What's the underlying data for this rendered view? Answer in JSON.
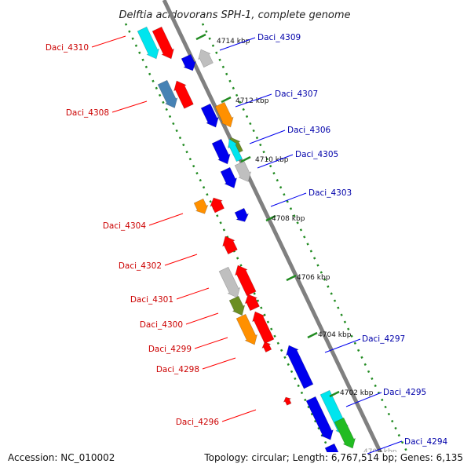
{
  "title": "Delftia acidovorans SPH-1, complete genome",
  "footer": {
    "accession": "Accession: NC_010002",
    "stats": "Topology: circular; Length: 6,767,514 bp; Genes: 6,135"
  },
  "ticks": [
    "4714 kbp",
    "4712 kbp",
    "4710 kbp",
    "4708 kbp",
    "4706 kbp",
    "4704 kbp",
    "4702 kbp",
    "4700 kbp"
  ],
  "genes_left": [
    "Daci_4310",
    "Daci_4308",
    "Daci_4304",
    "Daci_4302",
    "Daci_4301",
    "Daci_4300",
    "Daci_4299",
    "Daci_4298",
    "Daci_4296"
  ],
  "genes_right": [
    "Daci_4309",
    "Daci_4307",
    "Daci_4306",
    "Daci_4305",
    "Daci_4303",
    "Daci_4297",
    "Daci_4295",
    "Daci_4294"
  ],
  "colors": {
    "red": "#ff0000",
    "blue": "#0000ee",
    "cyan": "#00e5ee",
    "orange": "#ff9000",
    "gray": "#bfbfbf",
    "olive": "#6b8e23",
    "steel": "#4682b4",
    "green": "#22bb22",
    "left_label": "#cc0000",
    "right_label": "#0000aa",
    "backbone": "#808080",
    "dots": "#228b22"
  }
}
